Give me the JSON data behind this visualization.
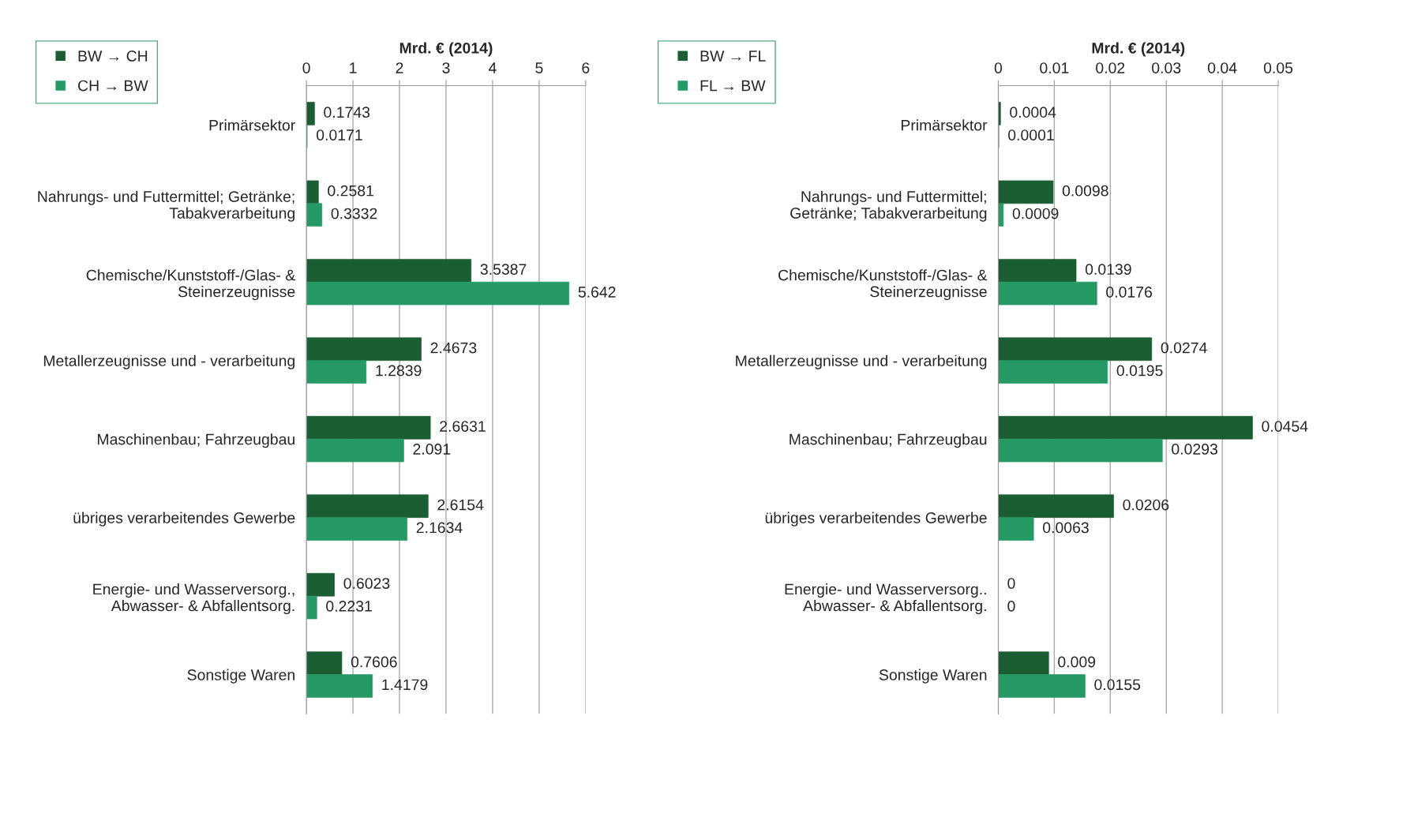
{
  "chart_data": [
    {
      "type": "bar",
      "orientation": "horizontal",
      "xlabel": "Mrd. € (2014)",
      "categories": [
        "Primärsektor",
        "Nahrungs- und Futtermittel; Getränke;\nTabakverarbeitung",
        "Chemische/Kunststoff-/Glas- &\nSteinerzeugnisse",
        "Metallerzeugnisse und - verarbeitung",
        "Maschinenbau; Fahrzeugbau",
        "übriges verarbeitendes Gewerbe",
        "Energie- und Wasserversorg.,\nAbwasser- & Abfallentsorg.",
        "Sonstige Waren"
      ],
      "series": [
        {
          "name": "BW → CH",
          "color": "#1b5e34",
          "values": [
            0.1743,
            0.2581,
            3.5387,
            2.4673,
            2.6631,
            2.6154,
            0.6023,
            0.7606
          ]
        },
        {
          "name": "CH → BW",
          "color": "#259a64",
          "values": [
            0.0171,
            0.3332,
            5.642,
            1.2839,
            2.091,
            2.1634,
            0.2231,
            1.4179
          ]
        }
      ],
      "xlim": [
        0,
        6
      ],
      "xticks": [
        0,
        1,
        2,
        3,
        4,
        5,
        6
      ],
      "grid": "x",
      "legend": "top left",
      "data_labels": true
    },
    {
      "type": "bar",
      "orientation": "horizontal",
      "xlabel": "Mrd. € (2014)",
      "categories": [
        "Primärsektor",
        "Nahrungs- und Futtermittel;\nGetränke; Tabakverarbeitung",
        "Chemische/Kunststoff-/Glas- &\nSteinerzeugnisse",
        "Metallerzeugnisse und - verarbeitung",
        "Maschinenbau; Fahrzeugbau",
        "übriges verarbeitendes Gewerbe",
        "Energie- und Wasserversorg..\nAbwasser- & Abfallentsorg.",
        "Sonstige Waren"
      ],
      "series": [
        {
          "name": "BW → FL",
          "color": "#1b5e34",
          "values": [
            0.0004,
            0.0098,
            0.0139,
            0.0274,
            0.0454,
            0.0206,
            0,
            0.009
          ]
        },
        {
          "name": "FL → BW",
          "color": "#259a64",
          "values": [
            0.0001,
            0.0009,
            0.0176,
            0.0195,
            0.0293,
            0.0063,
            0,
            0.0155
          ]
        }
      ],
      "xlim": [
        0,
        0.05
      ],
      "xticks": [
        0,
        0.01,
        0.02,
        0.03,
        0.04,
        0.05
      ],
      "grid": "x",
      "legend": "top left",
      "data_labels": true
    }
  ]
}
